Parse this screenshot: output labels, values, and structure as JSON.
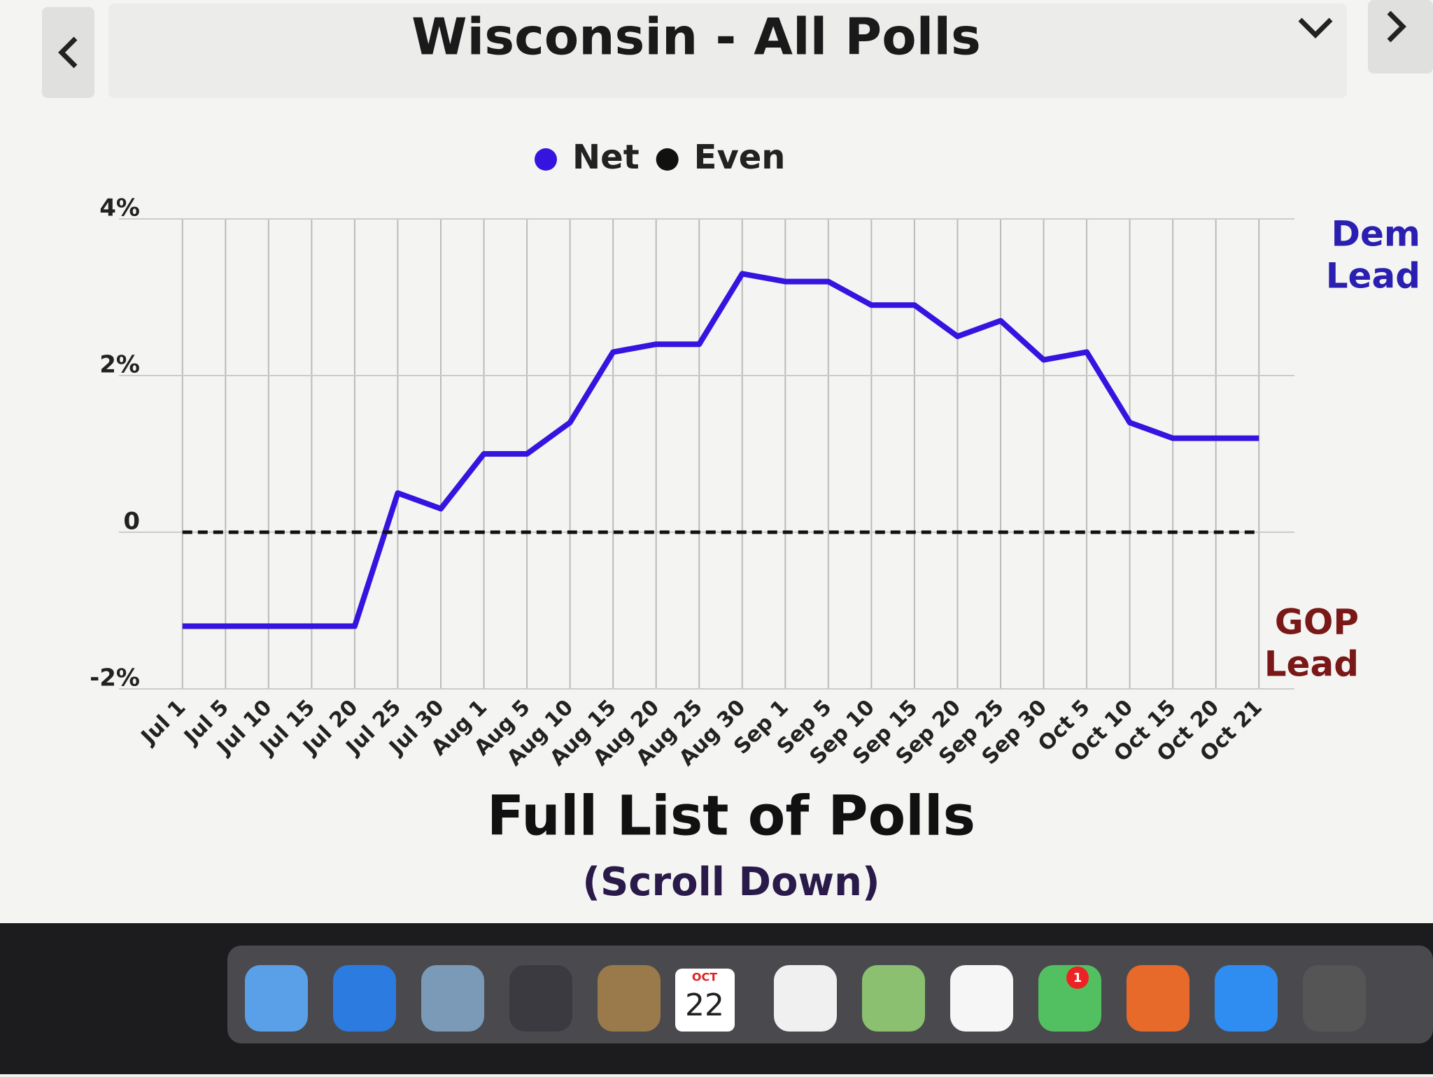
{
  "header": {
    "title": "Wisconsin - All Polls"
  },
  "chart_data": {
    "type": "line",
    "categories": [
      "Jul 1",
      "Jul 5",
      "Jul 10",
      "Jul 15",
      "Jul 20",
      "Jul 25",
      "Jul 30",
      "Aug 1",
      "Aug 5",
      "Aug 10",
      "Aug 15",
      "Aug 20",
      "Aug 25",
      "Aug 30",
      "Sep 1",
      "Sep 5",
      "Sep 10",
      "Sep 15",
      "Sep 20",
      "Sep 25",
      "Sep 30",
      "Oct 5",
      "Oct 10",
      "Oct 15",
      "Oct 20",
      "Oct 21"
    ],
    "series": [
      {
        "name": "Net",
        "color": "#3614e0",
        "values": [
          -1.2,
          -1.2,
          -1.2,
          -1.2,
          -1.2,
          0.5,
          0.3,
          1.0,
          1.0,
          1.4,
          2.3,
          2.4,
          2.4,
          3.3,
          3.2,
          3.2,
          2.9,
          2.9,
          2.5,
          2.7,
          2.2,
          2.3,
          1.4,
          1.2,
          1.2,
          1.2
        ]
      },
      {
        "name": "Even",
        "color": "#111111",
        "values": [
          0,
          0,
          0,
          0,
          0,
          0,
          0,
          0,
          0,
          0,
          0,
          0,
          0,
          0,
          0,
          0,
          0,
          0,
          0,
          0,
          0,
          0,
          0,
          0,
          0,
          0
        ]
      }
    ],
    "ylim": [
      -2,
      4
    ],
    "yticks": [
      {
        "value": -2,
        "label": "-2%"
      },
      0,
      {
        "value": 2,
        "label": "2%"
      },
      {
        "value": 4,
        "label": "4%"
      }
    ],
    "grid": true,
    "annotations": [
      [
        "Dem",
        "Lead"
      ],
      [
        "GOP",
        "Lead"
      ]
    ]
  },
  "footer": {
    "heading": "Full List of Polls",
    "subheading": "(Scroll Down)"
  },
  "dock": {
    "calendar_month": "OCT",
    "calendar_day": "22",
    "badge": "1"
  }
}
